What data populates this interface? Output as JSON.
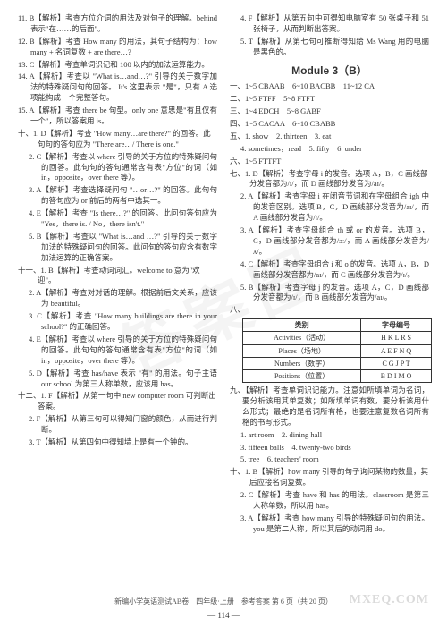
{
  "watermark_main": "答案圈",
  "watermark_sub": "MXEQ.COM",
  "left": {
    "items": [
      "11. B【解析】考查方位介词的用法及对句子的理解。behind 表示\"在……的后面\"。",
      "12. B【解析】考查 How many 的用法，其句子结构为：how many + 名词复数 + are there…?",
      "13. C【解析】考查单词识记和 100 以内的加法运算能力。",
      "14. A【解析】考查以 \"What is…and…?\" 引导的关于数字加法的特殊疑问句的回答。 It's 这里表示 \"是\"，只有 A 选项能构成一个完整答句。",
      "15. A【解析】考查 there be 句型。only one 意思是\"有且仅有一个\"，所以答案用 is。"
    ],
    "group10": {
      "header": "十、1. D【解析】考查 \"How many…are there?\" 的回答。此句句的答句应为 \"There are…/ There is one.\"",
      "items": [
        "2. C【解析】考查以 where 引导的关于方位的特殊疑问句的回答。此句句的答句通常含有表\"方位\"的词（如 in，opposite，over there 等）。",
        "3. A【解析】考查选择疑问句 \"…or…?\" 的回答。此句句的答句应为 or 前后的两者中选其一。",
        "4. E【解析】考查 \"Is there…?\" 的回答。此问句答句应为 \"Yes，there is. / No，there isn't.\"",
        "5. B【解析】考查以 \"What is…and …?\" 引导的关于数字加法的特殊疑问句的回答。此问句的答句应含有数字加法运算的正确答案。"
      ]
    },
    "group11": {
      "header": "十一、1. B【解析】考查动词词汇。welcome to 意为\"欢迎\"。",
      "items": [
        "2. A【解析】考查对对话的理解。根据前后文关系，应该为 beautiful。",
        "3. C【解析】考查 \"How many buildings are there in your school?\" 的正确回答。",
        "4. E【解析】考查以 where 引导的关于方位的特殊疑问句的回答。此句句的答句通常含有表\"方位\"的词（如 in，opposite，over there 等）。",
        "5. D【解析】考查 has/have 表示 \"有\" 的用法。句子主语 our school 为第三人称单数，应该用 has。"
      ]
    },
    "group12": {
      "header": "十二、1. F【解析】从第一句中 new computer room 可判断出答案。",
      "items": [
        "2. F【解析】从第三句可以得知门窗的颜色，从而进行判断。",
        "3. T【解析】从第四句中得知墙上是有一个钟的。"
      ]
    }
  },
  "right": {
    "top": [
      "4. F【解析】从第五句中可得知电脑室有 50 张桌子和 51 张椅子，从而判断出答案。",
      "5. T【解析】从第七句可推断得知给 Ms Wang 用的电脑是黑色的。"
    ],
    "module_title": "Module 3（B）",
    "answers": [
      "一、1~5 CBAAB　6~10 BACBB　11~12 CA",
      "二、1~5 FTFF　5~8 FTFT",
      "三、1~4 EDCH　5~8 GABF",
      "四、1~5 CACAA　6~10 CBABB"
    ],
    "group5": {
      "header": "五、1. show　2. thirteen　3. eat",
      "items": [
        "4. sometimes，read　5. fifty　6. under"
      ]
    },
    "group6": "六、1~5 FTTFT",
    "group7": {
      "header": "七、1. D【解析】考查字母 i 的发音。选项 A，B，C 画线部分发音都为/ɪ/，而 D 画线部分发音为/aɪ/。",
      "items": [
        "2. A【解析】考查字母 i 在闭音节词和在字母组合 igh 中的发音区别。选项 B，C，D 画线部分发音为/aɪ/，而 A 画线部分发音为/ɪ/。",
        "3. A【解析】考查字母组合 th 或 or 的发音。选项 B，C，D 画线部分发音都为/ɔː/，而 A 画线部分发音为/ʌ/。",
        "4. C【解析】考查字母组合 i 和 o 的发音。选项 A，B，D 画线部分发音都为/aɪ/，而 C 画线部分发音为/ɪ/。",
        "5. B【解析】考查字母 j 的发音。选项 A，C，D 画线部分发音都为/ɪ/，而 B 画线部分发音为/aɪ/。"
      ]
    },
    "table_header": "八、",
    "table": {
      "cols": [
        "类别",
        "字母编号"
      ],
      "rows": [
        [
          "Activities（活动）",
          "H K L R S"
        ],
        [
          "Places（场地）",
          "A E F N Q"
        ],
        [
          "Numbers（数字）",
          "C G J P T"
        ],
        [
          "Positions（位置）",
          "B D I M O"
        ]
      ]
    },
    "group9": "九、【解析】考查单词识记能力。注意如所填单词为名词，要分析该用其单复数；如所填单词有数，要分析该用什么形式；最绝的是名词所有格，也要注意复数名词所有格的书写形式。",
    "group9items": [
      "1. art room　2. dining hall",
      "3. fifteen balls　4. twenty-two birds",
      "5. tree　6. teachers' room"
    ],
    "group10": {
      "header": "十、1. B【解析】how many 引导的句子询问某物的数量，其后应接名词复数。",
      "items": [
        "2. C【解析】考查 have 和 has 的用法。classroom 是第三人称单数，所以用 has。",
        "3. A【解析】考查 how many 引导的特殊疑问句的用法。you 是第二人称，所以其后的动词用 do。"
      ]
    }
  },
  "footer": "新编小学英语测试AB卷　四年级·上册　参考答案 第 6 页（共 20 页）",
  "pagenum": "— 114 —"
}
